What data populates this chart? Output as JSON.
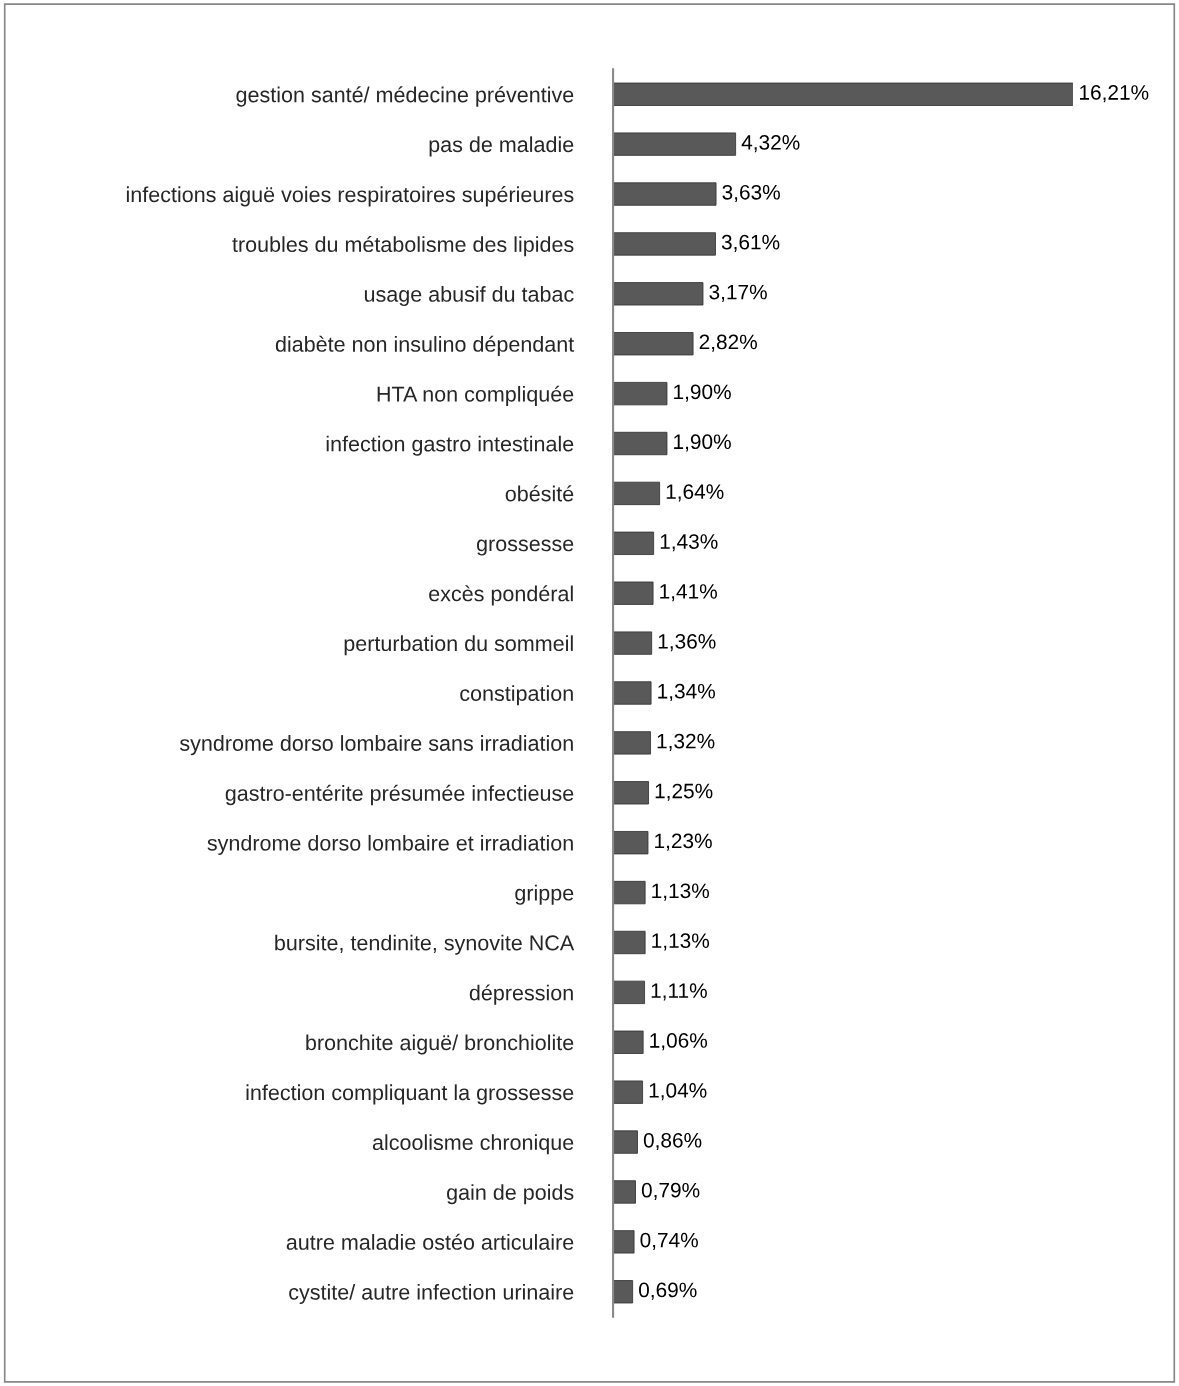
{
  "chart_data": {
    "type": "bar",
    "orientation": "horizontal",
    "color": "#595959",
    "grid": false,
    "tick_labels": "y",
    "categories": [
      "gestion santé/ médecine préventive",
      "pas de maladie",
      "infections aiguë voies respiratoires supérieures",
      "troubles du métabolisme des lipides",
      "usage abusif du tabac",
      "diabète non insulino dépendant",
      "HTA non compliquée",
      "infection gastro intestinale",
      "obésité",
      "grossesse",
      "excès pondéral",
      "perturbation du sommeil",
      "constipation",
      "syndrome dorso lombaire sans irradiation",
      "gastro-entérite présumée infectieuse",
      "syndrome dorso lombaire et irradiation",
      "grippe",
      "bursite, tendinite, synovite NCA",
      "dépression",
      "bronchite aiguë/ bronchiolite",
      "infection compliquant la grossesse",
      "alcoolisme chronique",
      "gain de poids",
      "autre maladie ostéo articulaire",
      "cystite/ autre infection urinaire"
    ],
    "values": [
      16.21,
      4.32,
      3.63,
      3.61,
      3.17,
      2.82,
      1.9,
      1.9,
      1.64,
      1.43,
      1.41,
      1.36,
      1.34,
      1.32,
      1.25,
      1.23,
      1.13,
      1.13,
      1.11,
      1.06,
      1.04,
      0.86,
      0.79,
      0.74,
      0.69
    ],
    "value_labels": [
      "16,21%",
      "4,32%",
      "3,63%",
      "3,61%",
      "3,17%",
      "2,82%",
      "1,90%",
      "1,90%",
      "1,64%",
      "1,43%",
      "1,41%",
      "1,36%",
      "1,34%",
      "1,32%",
      "1,25%",
      "1,23%",
      "1,13%",
      "1,13%",
      "1,11%",
      "1,06%",
      "1,04%",
      "0,86%",
      "0,79%",
      "0,74%",
      "0,69%"
    ]
  }
}
